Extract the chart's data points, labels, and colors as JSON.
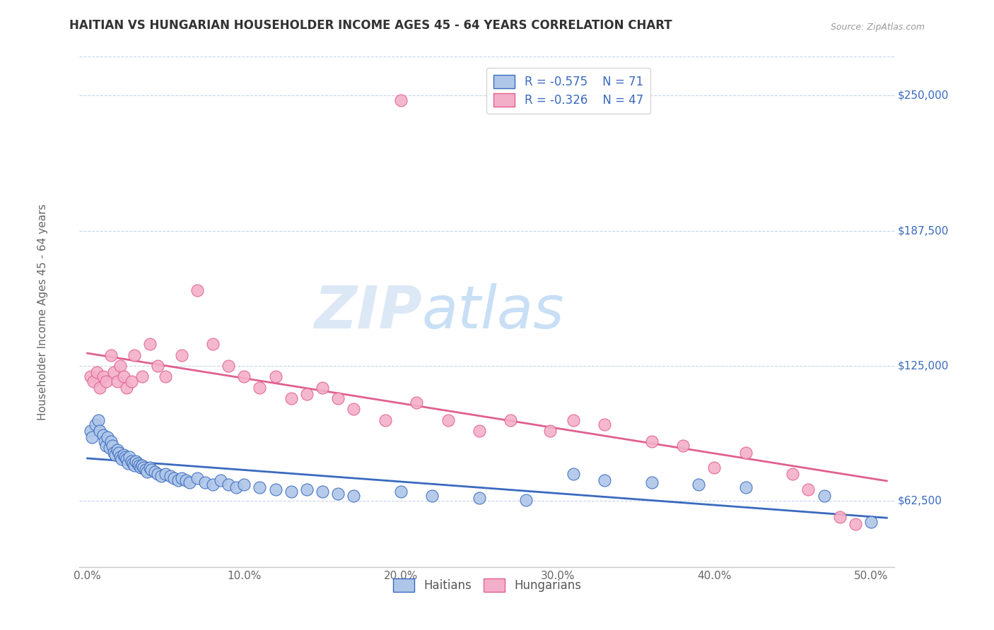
{
  "title": "HAITIAN VS HUNGARIAN HOUSEHOLDER INCOME AGES 45 - 64 YEARS CORRELATION CHART",
  "source": "Source: ZipAtlas.com",
  "ylabel": "Householder Income Ages 45 - 64 years",
  "xlabel_ticks": [
    "0.0%",
    "10.0%",
    "20.0%",
    "30.0%",
    "40.0%",
    "50.0%"
  ],
  "xlabel_vals": [
    0.0,
    0.1,
    0.2,
    0.3,
    0.4,
    0.5
  ],
  "ytick_labels": [
    "$62,500",
    "$125,000",
    "$187,500",
    "$250,000"
  ],
  "ytick_vals": [
    62500,
    125000,
    187500,
    250000
  ],
  "ylim": [
    32000,
    268000
  ],
  "xlim": [
    -0.005,
    0.515
  ],
  "haitian_color": "#aec6e8",
  "hungarian_color": "#f4afc8",
  "haitian_line_color": "#3a6abf",
  "hungarian_line_color": "#e06090",
  "haitian_line_color_text": "#3a6abf",
  "hungarian_line_color_text": "#e06090",
  "R_haitian": -0.575,
  "N_haitian": 71,
  "R_hungarian": -0.326,
  "N_hungarian": 47,
  "watermark_zip": "ZIP",
  "watermark_atlas": "atlas",
  "background_color": "#ffffff",
  "grid_color": "#c8d4e8",
  "haitian_scatter": {
    "x": [
      0.002,
      0.003,
      0.005,
      0.007,
      0.008,
      0.01,
      0.011,
      0.012,
      0.013,
      0.014,
      0.015,
      0.016,
      0.017,
      0.018,
      0.019,
      0.02,
      0.021,
      0.022,
      0.023,
      0.024,
      0.025,
      0.026,
      0.027,
      0.028,
      0.029,
      0.03,
      0.031,
      0.032,
      0.033,
      0.034,
      0.035,
      0.036,
      0.037,
      0.038,
      0.04,
      0.041,
      0.043,
      0.045,
      0.047,
      0.05,
      0.053,
      0.055,
      0.058,
      0.06,
      0.063,
      0.065,
      0.07,
      0.075,
      0.08,
      0.085,
      0.09,
      0.095,
      0.1,
      0.11,
      0.12,
      0.13,
      0.14,
      0.15,
      0.16,
      0.17,
      0.2,
      0.22,
      0.25,
      0.28,
      0.31,
      0.33,
      0.36,
      0.39,
      0.42,
      0.47,
      0.5
    ],
    "y": [
      95000,
      92000,
      98000,
      100000,
      95000,
      93000,
      90000,
      88000,
      92000,
      87000,
      90000,
      88000,
      85000,
      84000,
      86000,
      85000,
      83000,
      82000,
      84000,
      83000,
      82000,
      80000,
      83000,
      81000,
      80000,
      79000,
      81000,
      80000,
      79000,
      78000,
      79000,
      78000,
      77000,
      76000,
      78000,
      77000,
      76000,
      75000,
      74000,
      75000,
      74000,
      73000,
      72000,
      73000,
      72000,
      71000,
      73000,
      71000,
      70000,
      72000,
      70000,
      69000,
      70000,
      69000,
      68000,
      67000,
      68000,
      67000,
      66000,
      65000,
      67000,
      65000,
      64000,
      63000,
      75000,
      72000,
      71000,
      70000,
      69000,
      65000,
      53000
    ]
  },
  "hungarian_scatter": {
    "x": [
      0.002,
      0.004,
      0.006,
      0.008,
      0.01,
      0.012,
      0.015,
      0.017,
      0.019,
      0.021,
      0.023,
      0.025,
      0.028,
      0.03,
      0.035,
      0.04,
      0.045,
      0.05,
      0.06,
      0.07,
      0.08,
      0.09,
      0.1,
      0.11,
      0.12,
      0.13,
      0.14,
      0.15,
      0.16,
      0.17,
      0.19,
      0.21,
      0.23,
      0.25,
      0.27,
      0.295,
      0.31,
      0.33,
      0.36,
      0.38,
      0.4,
      0.42,
      0.45,
      0.46,
      0.48,
      0.49,
      0.2
    ],
    "y": [
      120000,
      118000,
      122000,
      115000,
      120000,
      118000,
      130000,
      122000,
      118000,
      125000,
      120000,
      115000,
      118000,
      130000,
      120000,
      135000,
      125000,
      120000,
      130000,
      160000,
      135000,
      125000,
      120000,
      115000,
      120000,
      110000,
      112000,
      115000,
      110000,
      105000,
      100000,
      108000,
      100000,
      95000,
      100000,
      95000,
      100000,
      98000,
      90000,
      88000,
      78000,
      85000,
      75000,
      68000,
      55000,
      52000,
      248000
    ]
  }
}
